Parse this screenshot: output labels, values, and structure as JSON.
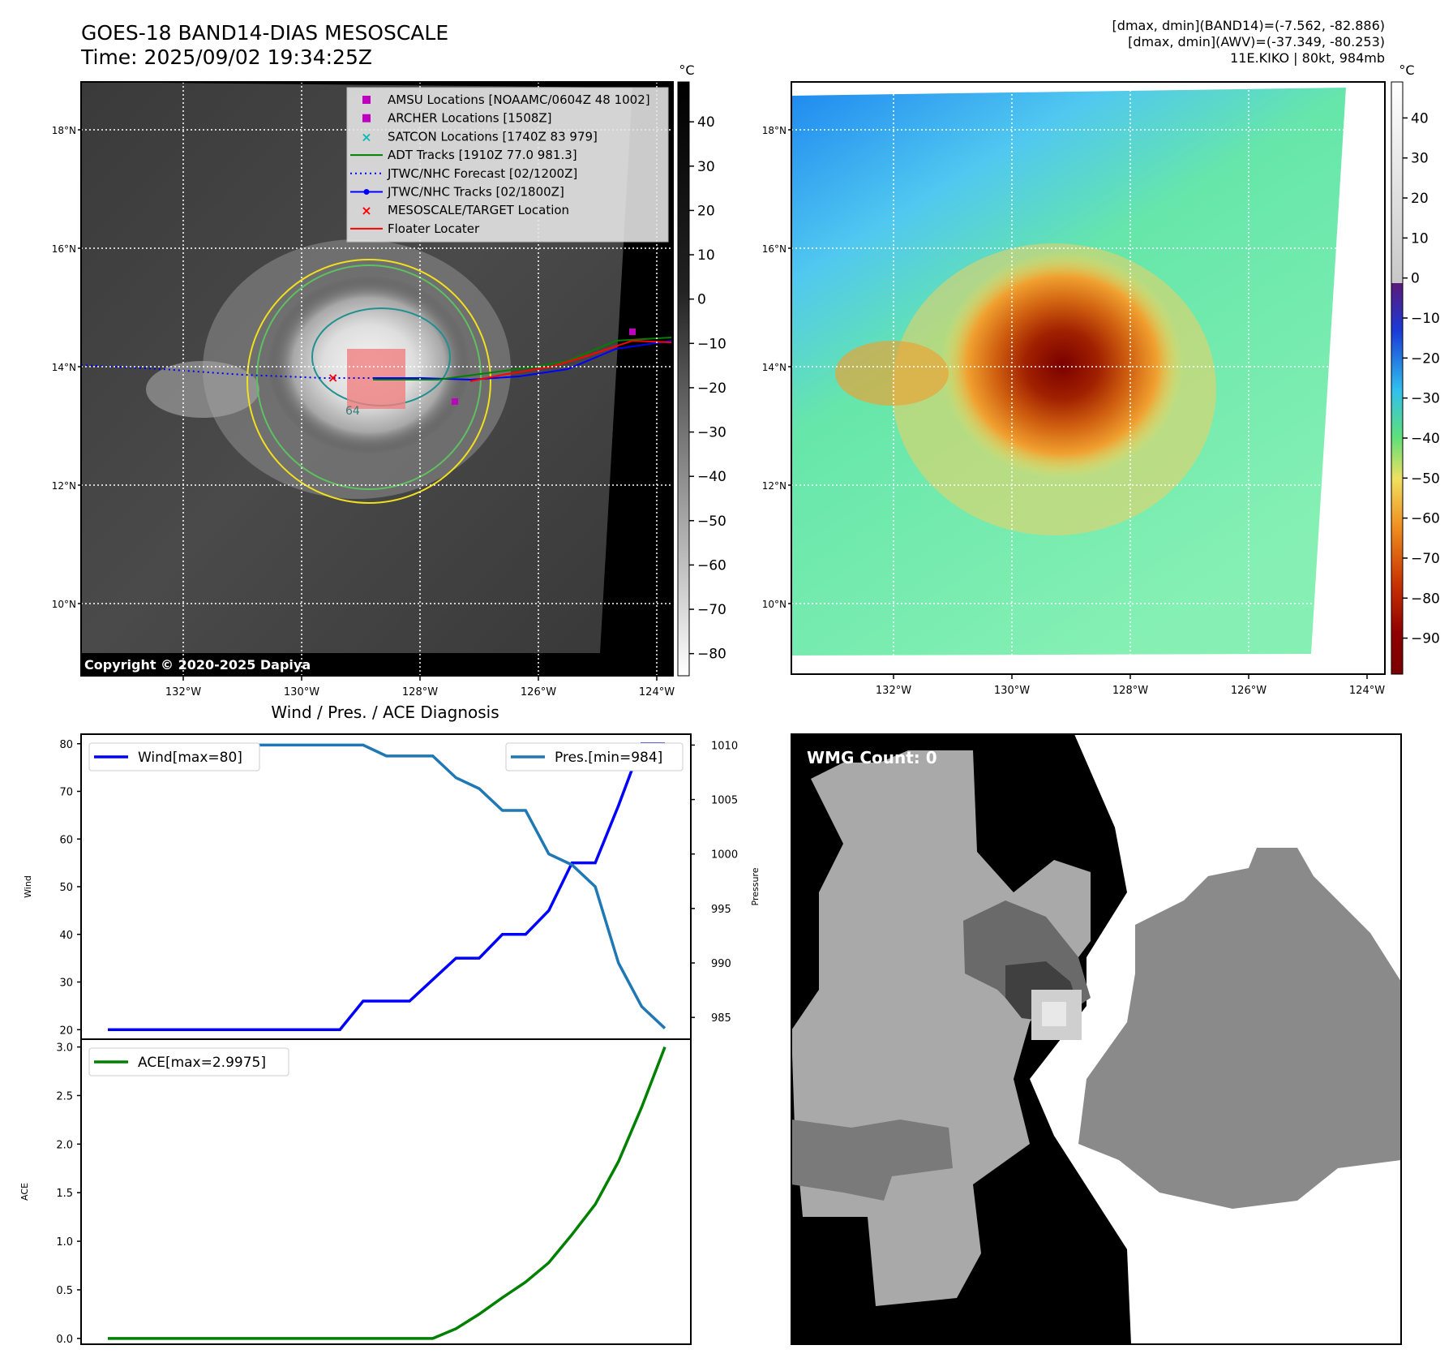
{
  "header": {
    "title_line1": "GOES-18 BAND14-DIAS MESOSCALE",
    "title_line2": "Time: 2025/09/02 19:34:25Z",
    "info_line1": "[dmax, dmin](BAND14)=(-7.562, -82.886)",
    "info_line2": "[dmax, dmin](AWV)=(-37.349, -80.253)",
    "info_line3": "11E.KIKO | 80kt, 984mb"
  },
  "maps": {
    "lat_labels": [
      "18°N",
      "16°N",
      "14°N",
      "12°N",
      "10°N"
    ],
    "lon_labels": [
      "132°W",
      "130°W",
      "128°W",
      "126°W",
      "124°W"
    ],
    "copyright": "Copyright © 2020-2025 Dapiya",
    "contour_label": "64",
    "colorbar_unit": "°C",
    "colorbar_left_ticks": [
      "40",
      "30",
      "20",
      "10",
      "0",
      "−10",
      "−20",
      "−30",
      "−40",
      "−50",
      "−60",
      "−70",
      "−80"
    ],
    "colorbar_right_ticks": [
      "40",
      "30",
      "20",
      "10",
      "0",
      "−10",
      "−20",
      "−30",
      "−40",
      "−50",
      "−60",
      "−70",
      "−80",
      "−90"
    ],
    "legend": [
      {
        "label": "AMSU Locations [NOAAMC/0604Z 48 1002]",
        "marker": "square",
        "color": "#c000c0"
      },
      {
        "label": "ARCHER Locations [1508Z]",
        "marker": "square",
        "color": "#c000c0"
      },
      {
        "label": "SATCON Locations [1740Z 83 979]",
        "marker": "x",
        "color": "#10b8b8"
      },
      {
        "label": "ADT Tracks [1910Z 77.0 981.3]",
        "marker": "line",
        "color": "#008000"
      },
      {
        "label": "JTWC/NHC Forecast [02/1200Z]",
        "marker": "dotted",
        "color": "#0000ff"
      },
      {
        "label": "JTWC/NHC Tracks [02/1800Z]",
        "marker": "line-dot",
        "color": "#0000ff"
      },
      {
        "label": "MESOSCALE/TARGET Location",
        "marker": "x",
        "color": "#ff0000"
      },
      {
        "label": "Floater Locater",
        "marker": "line",
        "color": "#ff0000"
      }
    ]
  },
  "wmg": {
    "label": "WMG Count: 0"
  },
  "chart_data": [
    {
      "type": "line",
      "title": "Wind / Pres. / ACE Diagnosis",
      "x": [
        0,
        1,
        2,
        3,
        4,
        5,
        6,
        7,
        8,
        9,
        10,
        11,
        12,
        13,
        14,
        15,
        16,
        17,
        18,
        19,
        20,
        21,
        22,
        23,
        24
      ],
      "series": [
        {
          "name": "Wind[max=80]",
          "axis": "left",
          "color": "#0000ff",
          "values": [
            20,
            20,
            20,
            20,
            20,
            20,
            20,
            20,
            20,
            20,
            20,
            26,
            26,
            26,
            30.5,
            35,
            35,
            40,
            40,
            45,
            55,
            55,
            67,
            80,
            80
          ]
        },
        {
          "name": "Pres.[min=984]",
          "axis": "right",
          "color": "#1f77b4",
          "values": [
            1010,
            1010,
            1010,
            1010,
            1010,
            1010,
            1010,
            1010,
            1010,
            1010,
            1010,
            1010,
            1009,
            1009,
            1009,
            1007,
            1006,
            1004,
            1004,
            1000,
            999,
            997,
            990,
            986,
            984
          ]
        }
      ],
      "ylabel_left": "Wind",
      "ylim_left": [
        18,
        82
      ],
      "yticks_left": [
        20,
        30,
        40,
        50,
        60,
        70,
        80
      ],
      "ylabel_right": "Pressure",
      "ylim_right": [
        983,
        1011
      ],
      "yticks_right": [
        985,
        990,
        995,
        1000,
        1005,
        1010
      ],
      "legend_left": "top-left",
      "legend_right": "top-right"
    },
    {
      "type": "line",
      "x": [
        0,
        1,
        2,
        3,
        4,
        5,
        6,
        7,
        8,
        9,
        10,
        11,
        12,
        13,
        14,
        15,
        16,
        17,
        18,
        19,
        20,
        21,
        22,
        23,
        24
      ],
      "series": [
        {
          "name": "ACE[max=2.9975]",
          "color": "#008000",
          "values": [
            0,
            0,
            0,
            0,
            0,
            0,
            0,
            0,
            0,
            0,
            0,
            0,
            0,
            0,
            0,
            0.1,
            0.25,
            0.42,
            0.58,
            0.78,
            1.07,
            1.38,
            1.82,
            2.38,
            3.0
          ]
        }
      ],
      "ylabel": "ACE",
      "ylim": [
        -0.06,
        3.08
      ],
      "yticks": [
        0.0,
        0.5,
        1.0,
        1.5,
        2.0,
        2.5,
        3.0
      ],
      "ytick_labels": [
        "0.0",
        "0.5",
        "1.0",
        "1.5",
        "2.0",
        "2.5",
        "3.0"
      ],
      "legend": "top-left"
    }
  ]
}
